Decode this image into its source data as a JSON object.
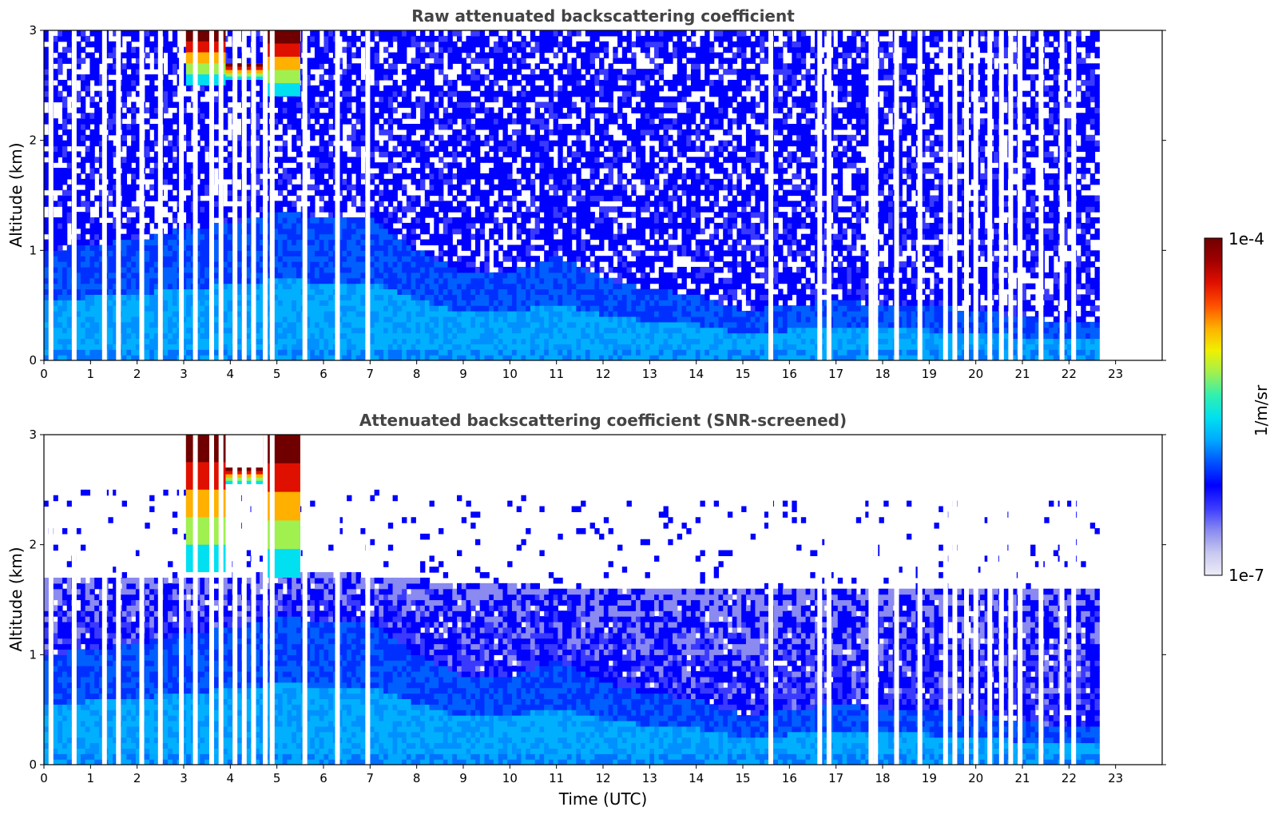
{
  "figure": {
    "xlabel": "Time (UTC)"
  },
  "colormap": {
    "stops": [
      "#ececf7",
      "#c8c8f0",
      "#8a8af0",
      "#3a3aff",
      "#0000ff",
      "#0050ff",
      "#00a8ff",
      "#00e0f0",
      "#30f0b0",
      "#a0f050",
      "#f0f000",
      "#ffb000",
      "#ff5000",
      "#e01000",
      "#a00000",
      "#700000"
    ]
  },
  "colorbar": {
    "label": "1/m/sr",
    "max_label": "1e-4",
    "min_label": "1e-7"
  },
  "chart_data": [
    {
      "type": "heatmap",
      "title": "Raw attenuated backscattering coefficient",
      "xlabel": "",
      "ylabel": "Altitude (km)",
      "xlim": [
        0,
        24
      ],
      "ylim": [
        0,
        3
      ],
      "xticks": [
        "0",
        "1",
        "2",
        "3",
        "4",
        "5",
        "6",
        "7",
        "8",
        "9",
        "10",
        "11",
        "12",
        "13",
        "14",
        "15",
        "16",
        "17",
        "18",
        "19",
        "20",
        "21",
        "22",
        "23"
      ],
      "yticks": [
        "0",
        "1",
        "2",
        "3"
      ],
      "data_end_time": 22.65,
      "boundary_layer_top_km": [
        [
          0,
          1.0
        ],
        [
          1,
          1.05
        ],
        [
          2,
          1.1
        ],
        [
          3,
          1.2
        ],
        [
          4,
          1.25
        ],
        [
          5,
          1.35
        ],
        [
          6,
          1.3
        ],
        [
          7,
          1.3
        ],
        [
          8,
          1.0
        ],
        [
          9,
          0.8
        ],
        [
          10,
          0.8
        ],
        [
          11,
          0.95
        ],
        [
          12,
          0.75
        ],
        [
          13,
          0.65
        ],
        [
          14,
          0.6
        ],
        [
          15,
          0.45
        ],
        [
          16,
          0.5
        ],
        [
          17,
          0.55
        ],
        [
          18,
          0.5
        ],
        [
          19,
          0.5
        ],
        [
          20,
          0.45
        ],
        [
          21,
          0.4
        ],
        [
          22,
          0.35
        ],
        [
          22.65,
          0.35
        ]
      ],
      "clouds": [
        {
          "t_start": 3.05,
          "t_end": 3.9,
          "alt_bottom_km": 2.5,
          "alt_top_km": 3.0
        },
        {
          "t_start": 3.9,
          "t_end": 4.7,
          "alt_bottom_km": 2.55,
          "alt_top_km": 2.7
        },
        {
          "t_start": 4.7,
          "t_end": 5.5,
          "alt_bottom_km": 2.4,
          "alt_top_km": 3.0
        }
      ],
      "gaps_utc": [
        0.15,
        0.65,
        1.3,
        1.6,
        2.1,
        2.5,
        2.95,
        3.25,
        3.6,
        3.8,
        4.1,
        4.3,
        4.5,
        4.75,
        4.9,
        5.6,
        6.3,
        6.95,
        15.6,
        16.65,
        16.85,
        17.75,
        17.85,
        18.3,
        18.8,
        19.35,
        19.55,
        19.8,
        20.0,
        20.3,
        20.55,
        20.75,
        20.95,
        21.4,
        21.85,
        22.1
      ]
    },
    {
      "type": "heatmap",
      "title": "Attenuated backscattering coefficient (SNR-screened)",
      "xlabel": "Time (UTC)",
      "ylabel": "Altitude (km)",
      "xlim": [
        0,
        24
      ],
      "ylim": [
        0,
        3
      ],
      "xticks": [
        "0",
        "1",
        "2",
        "3",
        "4",
        "5",
        "6",
        "7",
        "8",
        "9",
        "10",
        "11",
        "12",
        "13",
        "14",
        "15",
        "16",
        "17",
        "18",
        "19",
        "20",
        "21",
        "22",
        "23"
      ],
      "yticks": [
        "0",
        "1",
        "2",
        "3"
      ],
      "data_end_time": 22.65,
      "screen_top_km": [
        [
          0,
          1.7
        ],
        [
          3,
          1.7
        ],
        [
          6,
          1.75
        ],
        [
          9,
          1.65
        ],
        [
          12,
          1.6
        ],
        [
          15,
          1.6
        ],
        [
          18,
          1.6
        ],
        [
          22.65,
          1.6
        ]
      ],
      "boundary_layer_top_km": [
        [
          0,
          1.0
        ],
        [
          1,
          1.05
        ],
        [
          2,
          1.1
        ],
        [
          3,
          1.2
        ],
        [
          4,
          1.25
        ],
        [
          5,
          1.35
        ],
        [
          6,
          1.3
        ],
        [
          7,
          1.3
        ],
        [
          8,
          1.0
        ],
        [
          9,
          0.8
        ],
        [
          10,
          0.8
        ],
        [
          11,
          0.95
        ],
        [
          12,
          0.75
        ],
        [
          13,
          0.65
        ],
        [
          14,
          0.6
        ],
        [
          15,
          0.45
        ],
        [
          16,
          0.5
        ],
        [
          17,
          0.55
        ],
        [
          18,
          0.5
        ],
        [
          19,
          0.5
        ],
        [
          20,
          0.45
        ],
        [
          21,
          0.4
        ],
        [
          22,
          0.35
        ],
        [
          22.65,
          0.35
        ]
      ],
      "clouds": [
        {
          "t_start": 3.05,
          "t_end": 3.9,
          "alt_bottom_km": 1.75,
          "alt_top_km": 3.0
        },
        {
          "t_start": 3.9,
          "t_end": 4.7,
          "alt_bottom_km": 2.55,
          "alt_top_km": 2.7
        },
        {
          "t_start": 4.7,
          "t_end": 5.5,
          "alt_bottom_km": 1.7,
          "alt_top_km": 3.0
        }
      ],
      "gaps_utc": [
        0.15,
        0.65,
        1.3,
        1.6,
        2.1,
        2.5,
        2.95,
        3.25,
        3.6,
        3.8,
        4.1,
        4.3,
        4.5,
        4.75,
        4.9,
        5.6,
        6.3,
        6.95,
        15.6,
        16.65,
        16.85,
        17.75,
        17.85,
        18.3,
        18.8,
        19.35,
        19.55,
        19.8,
        20.0,
        20.3,
        20.55,
        20.75,
        20.95,
        21.4,
        21.85,
        22.1
      ]
    }
  ]
}
